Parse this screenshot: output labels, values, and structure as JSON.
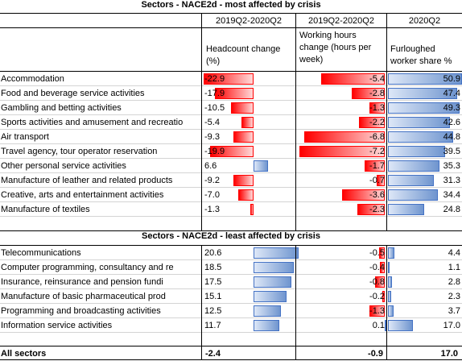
{
  "section1_title": "Sectors - NACE2d - most affected by crisis",
  "section2_title": "Sectors - NACE2d - least affected by crisis",
  "period_headers": [
    "2019Q2-2020Q2",
    "2019Q2-2020Q2",
    "2020Q2"
  ],
  "col_headers": {
    "headcount": "Headcount change (%)",
    "hours": "Working hours change (hours per week)",
    "furlough": "Furloughed worker share %"
  },
  "colors": {
    "negative": "#ff0000",
    "positive": "#4472c4"
  },
  "most_affected": [
    {
      "sector": "Accommodation",
      "headcount": "-22.9",
      "hours": "-5.4",
      "furlough": "50.9"
    },
    {
      "sector": "Food and beverage service activities",
      "headcount": "-17.9",
      "hours": "-2.8",
      "furlough": "47.4"
    },
    {
      "sector": "Gambling and betting activities",
      "headcount": "-10.5",
      "hours": "-1.3",
      "furlough": "49.3"
    },
    {
      "sector": "Sports activities and amusement and recreatio",
      "headcount": "-5.4",
      "hours": "-2.2",
      "furlough": "42.6"
    },
    {
      "sector": "Air transport",
      "headcount": "-9.3",
      "hours": "-6.8",
      "furlough": "44.8"
    },
    {
      "sector": "Travel agency, tour operator reservation",
      "headcount": "-19.9",
      "hours": "-7.2",
      "furlough": "39.5"
    },
    {
      "sector": "Other personal service activities",
      "headcount": "6.6",
      "hours": "-1.7",
      "furlough": "35.3"
    },
    {
      "sector": "Manufacture of leather and related products",
      "headcount": "-9.2",
      "hours": "-0.7",
      "furlough": "31.3"
    },
    {
      "sector": "Creative, arts and entertainment activities",
      "headcount": "-7.0",
      "hours": "-3.6",
      "furlough": "34.4"
    },
    {
      "sector": "Manufacture of textiles",
      "headcount": "-1.3",
      "hours": "-2.3",
      "furlough": "24.8"
    }
  ],
  "least_affected": [
    {
      "sector": "Telecommunications",
      "headcount": "20.6",
      "hours": "-0.5",
      "furlough": "4.4"
    },
    {
      "sector": "Computer programming, consultancy and re",
      "headcount": "18.5",
      "hours": "-0.4",
      "furlough": "1.1"
    },
    {
      "sector": "Insurance, reinsurance and pension fundi",
      "headcount": "17.5",
      "hours": "-0.8",
      "furlough": "2.8"
    },
    {
      "sector": "Manufacture of basic pharmaceutical prod",
      "headcount": "15.1",
      "hours": "-0.2",
      "furlough": "2.3"
    },
    {
      "sector": "Programming and broadcasting activities",
      "headcount": "12.5",
      "hours": "-1.3",
      "furlough": "3.7"
    },
    {
      "sector": "Information service activities",
      "headcount": "11.7",
      "hours": "0.1",
      "furlough": "17.0"
    }
  ],
  "all_sectors": {
    "label": "All sectors",
    "headcount": "-2.4",
    "hours": "-0.9",
    "furlough": "17.0"
  }
}
